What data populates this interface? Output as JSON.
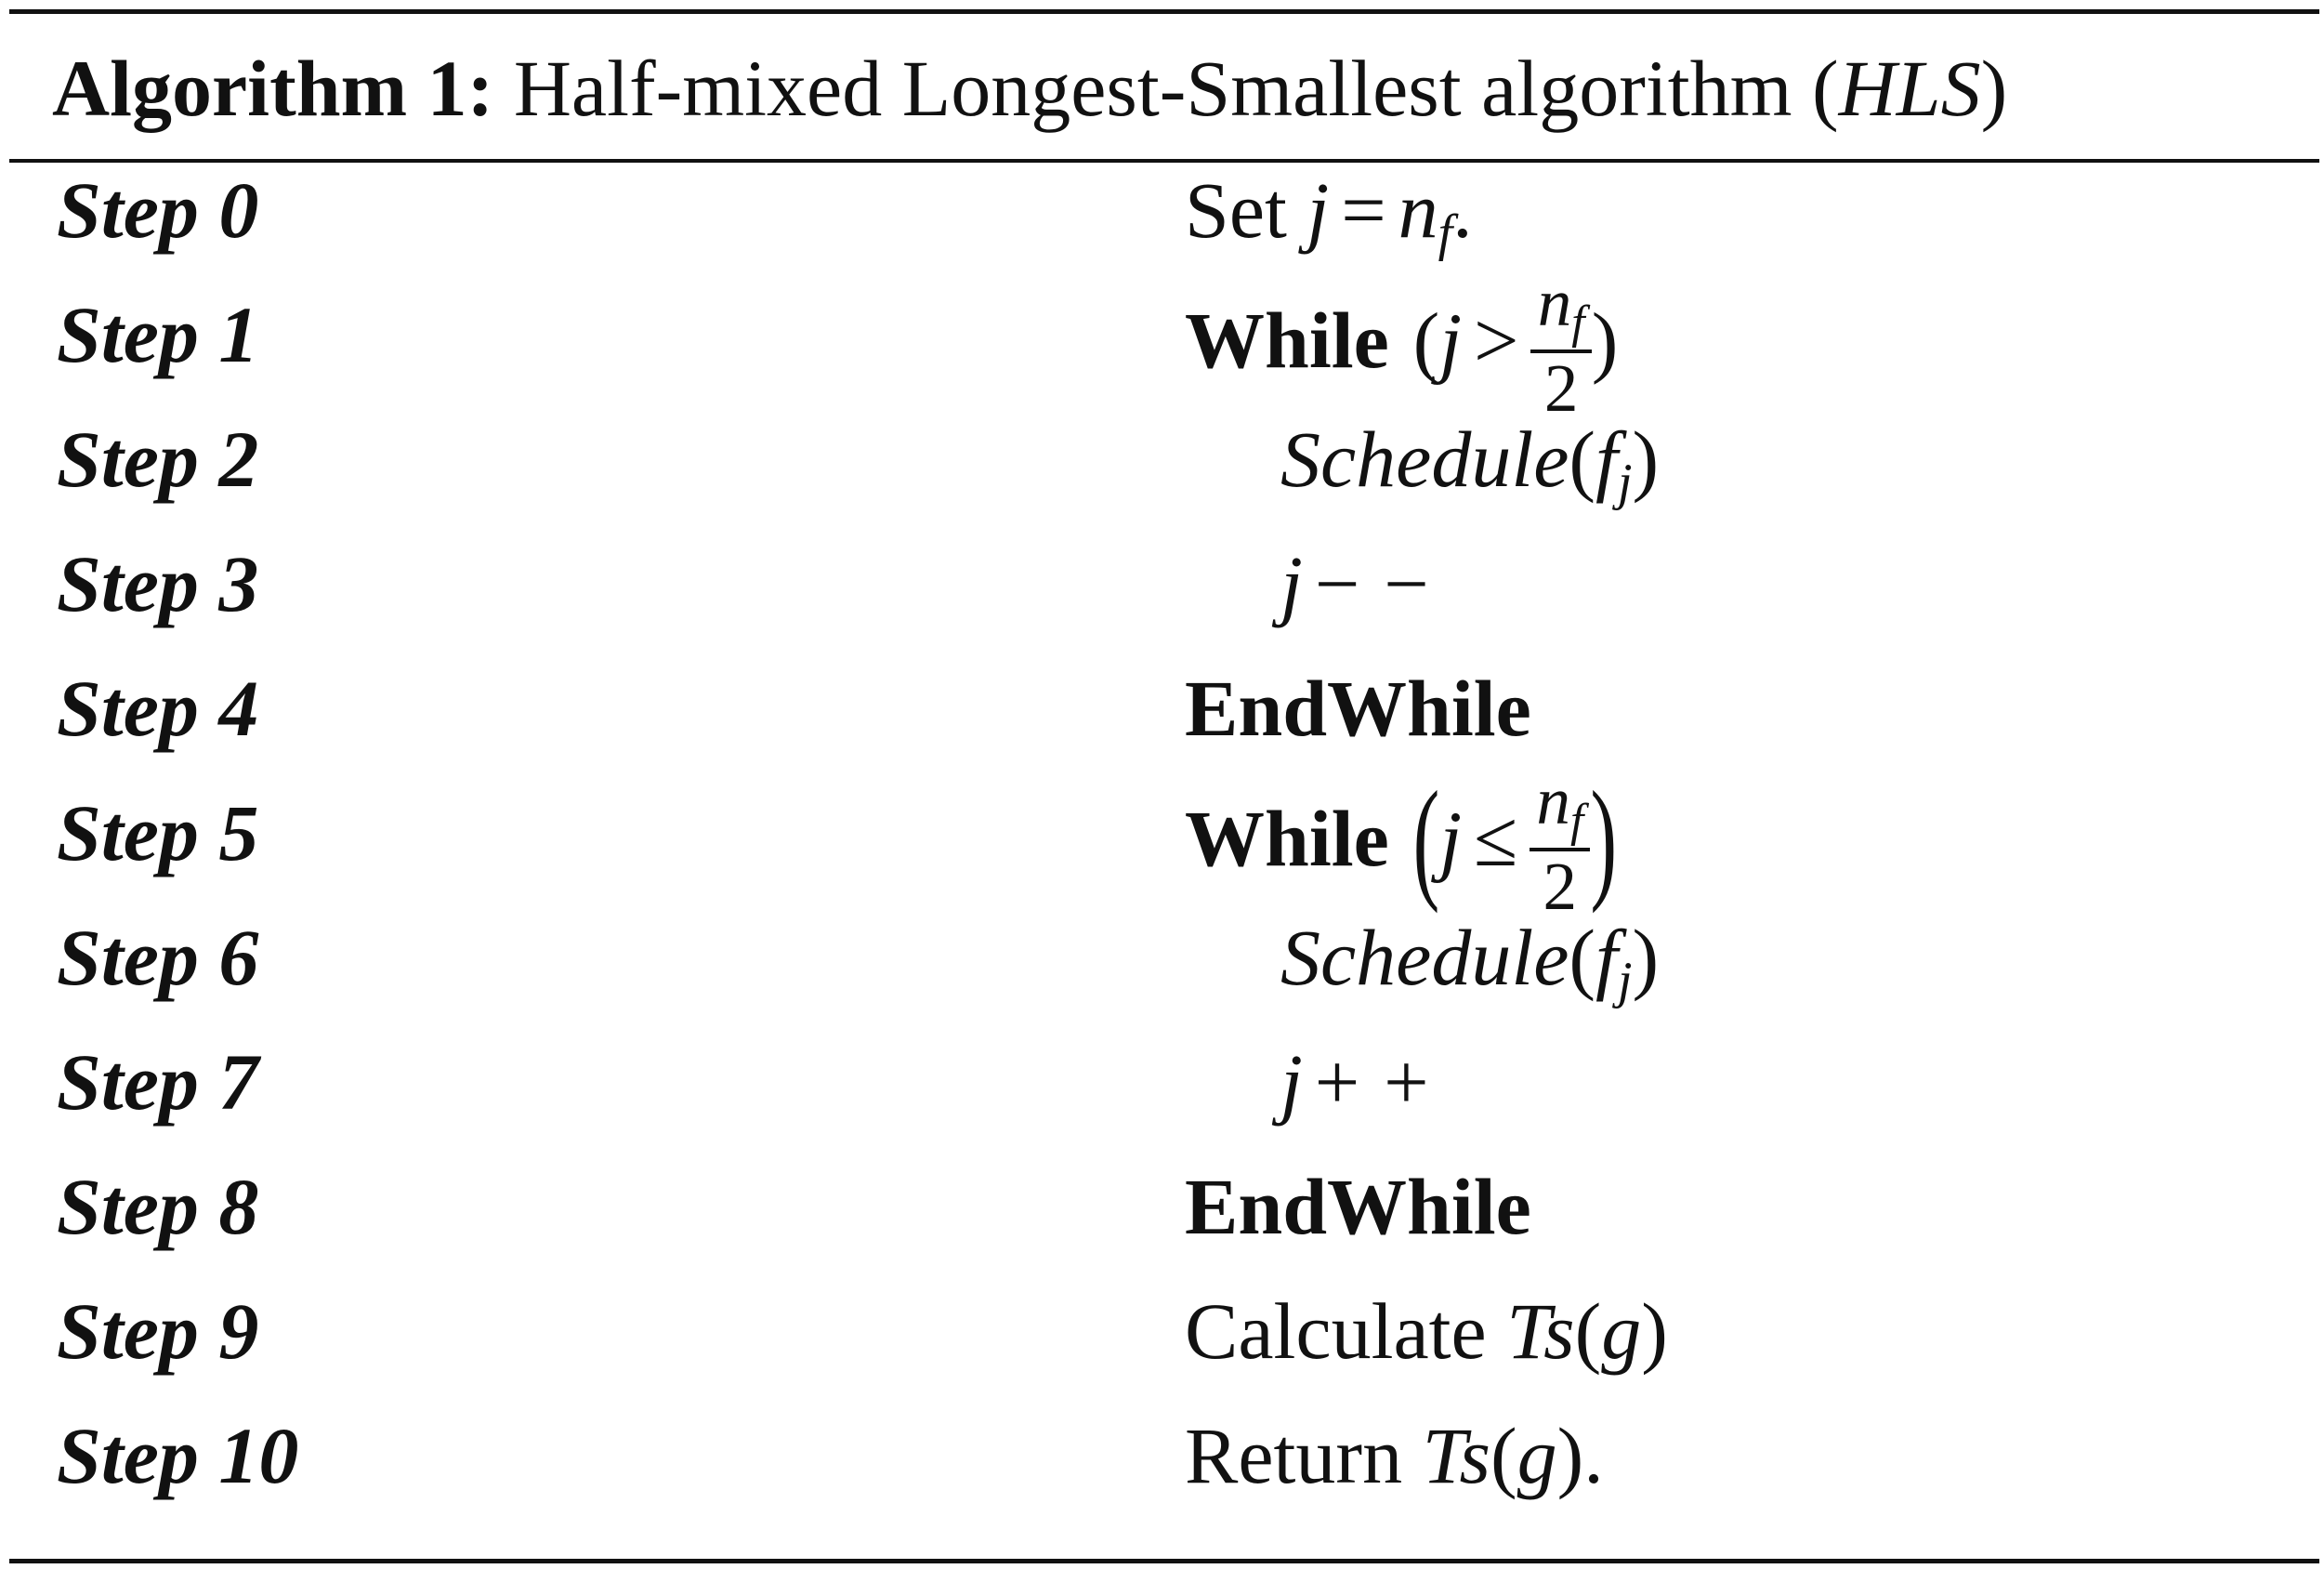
{
  "title": {
    "label": "Algorithm 1:",
    "text": "Half-mixed Longest-Smallest algorithm (",
    "abbr": "HLS",
    "close": ")"
  },
  "steps": [
    {
      "label": "Step 0",
      "parts": [
        "Set",
        "j",
        "=",
        "n",
        "f",
        "."
      ]
    },
    {
      "label": "Step 1",
      "parts": [
        "While",
        "(",
        "j",
        ">",
        "n",
        "f",
        "2",
        ")"
      ]
    },
    {
      "label": "Step 2",
      "parts": [
        "Schedule",
        "(",
        "f",
        "j",
        ")"
      ]
    },
    {
      "label": "Step 3",
      "parts": [
        "j",
        "−",
        "−"
      ]
    },
    {
      "label": "Step 4",
      "parts": [
        "EndWhile"
      ]
    },
    {
      "label": "Step 5",
      "parts": [
        "While",
        "(",
        "j",
        "≤",
        "n",
        "f",
        "2",
        ")"
      ]
    },
    {
      "label": "Step 6",
      "parts": [
        "Schedule",
        "(",
        "f",
        "j",
        ")"
      ]
    },
    {
      "label": "Step 7",
      "parts": [
        "j",
        "+",
        "+"
      ]
    },
    {
      "label": "Step 8",
      "parts": [
        "EndWhile"
      ]
    },
    {
      "label": "Step 9",
      "parts": [
        "Calculate",
        "Ts",
        "(",
        "g",
        ")"
      ]
    },
    {
      "label": "Step 10",
      "parts": [
        "Return",
        "Ts",
        "(",
        "g",
        ")",
        "."
      ]
    }
  ]
}
